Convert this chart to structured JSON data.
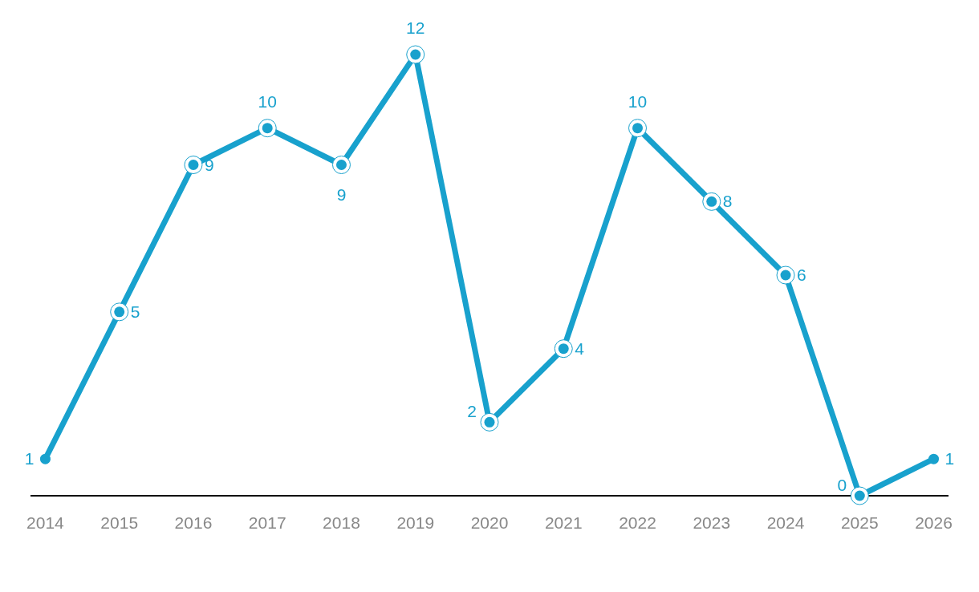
{
  "chart_data": {
    "type": "line",
    "categories": [
      "2014",
      "2015",
      "2016",
      "2017",
      "2018",
      "2019",
      "2020",
      "2021",
      "2022",
      "2023",
      "2024",
      "2025",
      "2026"
    ],
    "series": [
      {
        "color": "#18a1cd",
        "values": [
          1,
          5,
          9,
          10,
          9,
          12,
          2,
          4,
          10,
          8,
          6,
          0,
          1
        ]
      }
    ],
    "data_labels": true,
    "marker": "circle",
    "line_style": "solid"
  }
}
